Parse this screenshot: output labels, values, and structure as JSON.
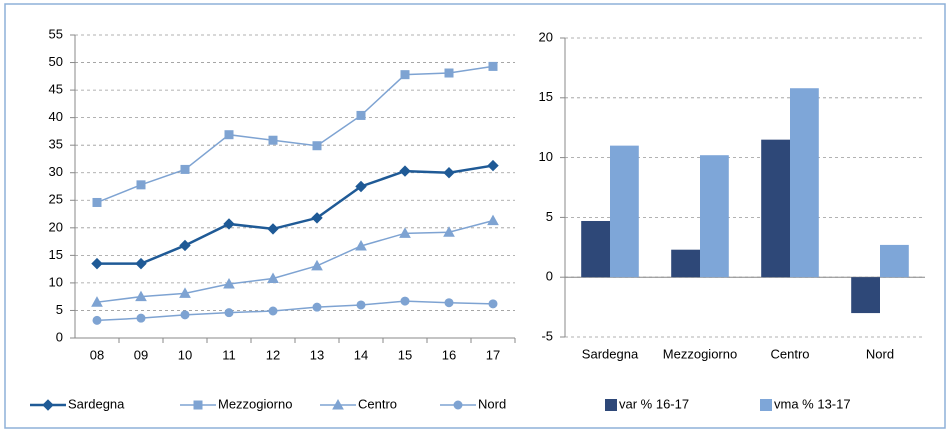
{
  "chart_data": [
    {
      "type": "line",
      "categories": [
        "08",
        "09",
        "10",
        "11",
        "12",
        "13",
        "14",
        "15",
        "16",
        "17"
      ],
      "ylim": [
        0,
        55
      ],
      "yticks": [
        0,
        5,
        10,
        15,
        20,
        25,
        30,
        35,
        40,
        45,
        50,
        55
      ],
      "grid": true,
      "series": [
        {
          "name": "Sardegna",
          "color": "#1f5a96",
          "marker": "diamond",
          "values": [
            13.5,
            13.5,
            16.8,
            20.7,
            19.8,
            21.8,
            27.5,
            30.3,
            30.0,
            31.3
          ]
        },
        {
          "name": "Mezzogiorno",
          "color": "#7ea3d2",
          "marker": "square",
          "values": [
            24.6,
            27.8,
            30.6,
            36.9,
            35.9,
            34.9,
            40.4,
            47.8,
            48.1,
            49.3
          ]
        },
        {
          "name": "Centro",
          "color": "#7ea3d2",
          "marker": "triangle",
          "values": [
            6.5,
            7.5,
            8.1,
            9.8,
            10.8,
            13.1,
            16.7,
            19.0,
            19.2,
            21.3
          ]
        },
        {
          "name": "Nord",
          "color": "#7ea3d2",
          "marker": "circle",
          "values": [
            3.2,
            3.6,
            4.2,
            4.6,
            4.9,
            5.6,
            6.0,
            6.7,
            6.4,
            6.2
          ]
        }
      ]
    },
    {
      "type": "bar",
      "categories": [
        "Sardegna",
        "Mezzogiorno",
        "Centro",
        "Nord"
      ],
      "ylim": [
        -5,
        20
      ],
      "yticks": [
        -5,
        0,
        5,
        10,
        15,
        20
      ],
      "grid": true,
      "series": [
        {
          "name": "var % 16-17",
          "color": "#2e4878",
          "values": [
            4.7,
            2.3,
            11.5,
            -3.0
          ]
        },
        {
          "name": "vma % 13-17",
          "color": "#7ea6d8",
          "values": [
            11.0,
            10.2,
            15.8,
            2.7
          ]
        }
      ]
    }
  ]
}
